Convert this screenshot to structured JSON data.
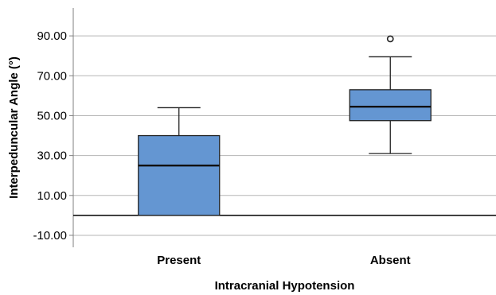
{
  "chart_data": {
    "type": "boxplot",
    "xlabel": "Intracranial Hypotension",
    "ylabel": "Interpeduncular Angle (°)",
    "ylim": [
      -16,
      104
    ],
    "yticks": [
      -10,
      10,
      30,
      50,
      70,
      90
    ],
    "ytick_labels": [
      "-10.00",
      "10.00",
      "30.00",
      "50.00",
      "70.00",
      "90.00"
    ],
    "grid": true,
    "reference_line": 0,
    "box_color": "#6496d2",
    "categories": [
      "Present",
      "Absent"
    ],
    "boxes": [
      {
        "category": "Present",
        "whisker_low": 0,
        "q1": 0,
        "median": 25,
        "q3": 40,
        "whisker_high": 54,
        "outliers": []
      },
      {
        "category": "Absent",
        "whisker_low": 31,
        "q1": 47.5,
        "median": 54.5,
        "q3": 63,
        "whisker_high": 79.5,
        "outliers": [
          88.5
        ]
      }
    ]
  }
}
